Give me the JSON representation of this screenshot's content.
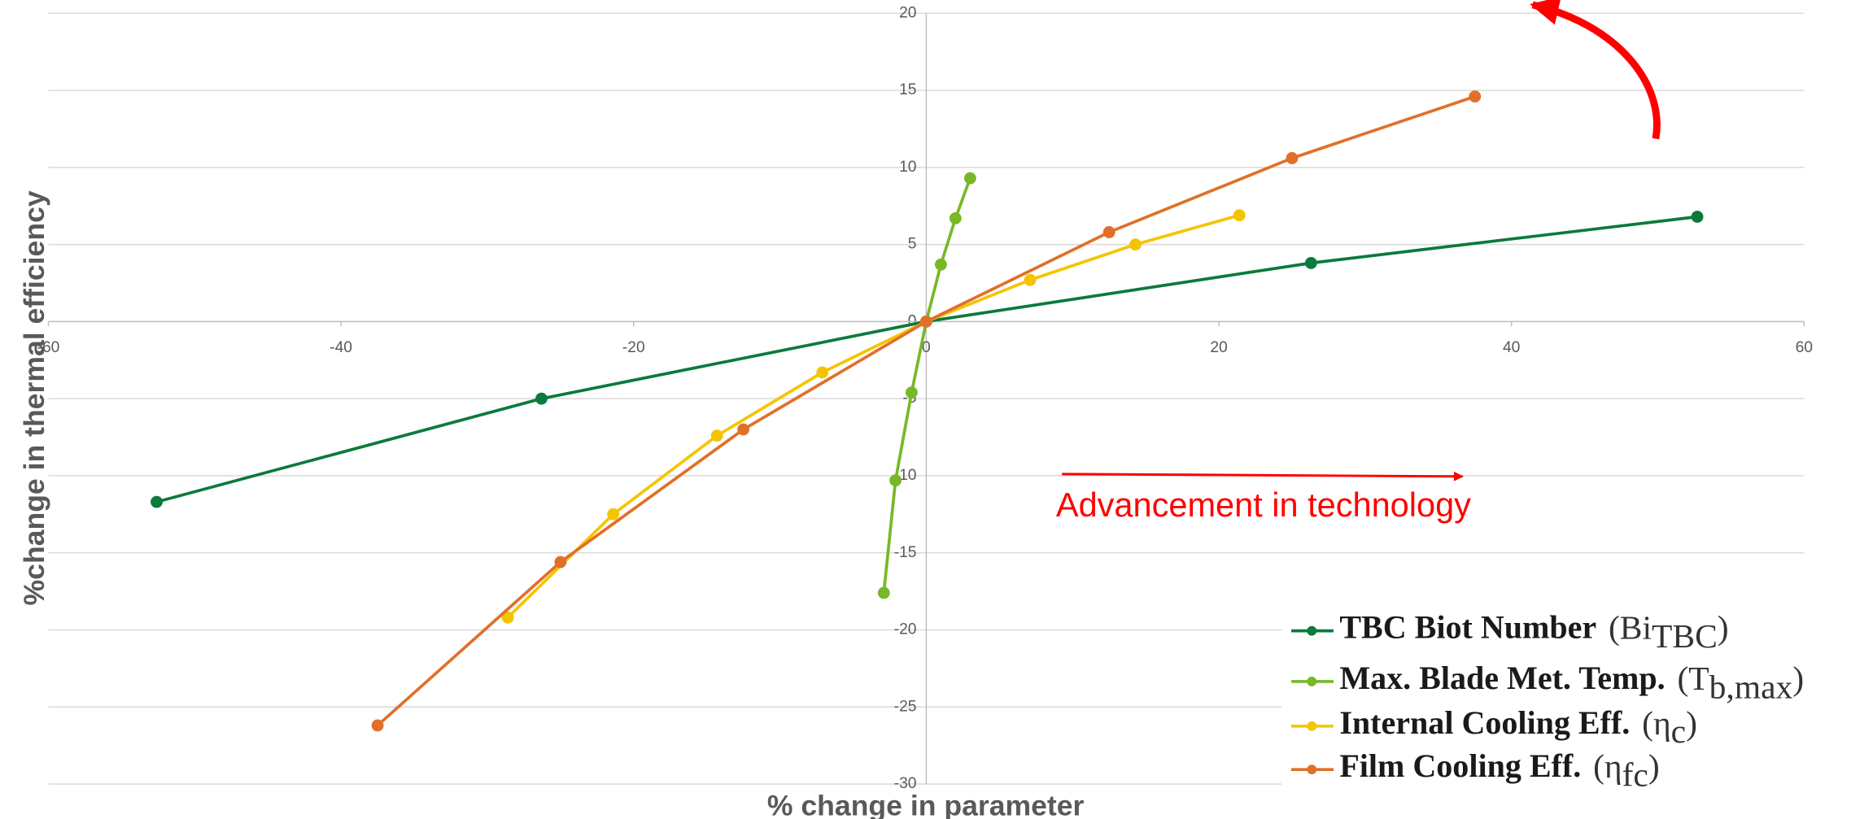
{
  "chart_data": {
    "type": "line",
    "xlabel": "% change in parameter",
    "ylabel": "%change in thermal efficiency",
    "annotation": "Advancement in technology",
    "xlim": [
      -60,
      60
    ],
    "xticks": [
      -60,
      -40,
      -20,
      0,
      20,
      40,
      60
    ],
    "ylim": [
      -30,
      20
    ],
    "yticks": [
      -30,
      -25,
      -20,
      -15,
      -10,
      -5,
      0,
      5,
      10,
      15,
      20
    ],
    "grid": true,
    "series": [
      {
        "name": "TBC Biot Number",
        "symbol": {
          "base": "(Bi",
          "sub": "TBC",
          "close": ")"
        },
        "color": "#0b7a3b",
        "x": [
          -52.6,
          -26.3,
          0,
          26.3,
          52.7
        ],
        "values": [
          -11.7,
          -5,
          0,
          3.8,
          6.8
        ]
      },
      {
        "name": "Max. Blade Met. Temp.",
        "symbol": {
          "base": "(T",
          "sub": "b,max",
          "close": ")"
        },
        "color": "#78b828",
        "x": [
          -2.9,
          -2.1,
          -1,
          0,
          1,
          2,
          3
        ],
        "values": [
          -17.6,
          -10.3,
          -4.6,
          0,
          3.7,
          6.7,
          9.3
        ]
      },
      {
        "name": "Internal Cooling Eff.",
        "symbol": {
          "base": "(η",
          "sub": "c",
          "close": ")"
        },
        "color": "#f5c400",
        "x": [
          -28.6,
          -21.4,
          -14.3,
          -7.1,
          0,
          7.1,
          14.3,
          21.4
        ],
        "values": [
          -19.2,
          -12.5,
          -7.4,
          -3.3,
          0,
          2.7,
          5,
          6.9
        ]
      },
      {
        "name": "Film Cooling Eff.",
        "symbol": {
          "base": "(η",
          "sub": "fc",
          "close": ")"
        },
        "color": "#e07029",
        "x": [
          -37.5,
          -25,
          -12.5,
          0,
          12.5,
          25,
          37.5
        ],
        "values": [
          -26.2,
          -15.6,
          -7,
          0,
          5.8,
          10.6,
          14.6
        ]
      }
    ]
  }
}
